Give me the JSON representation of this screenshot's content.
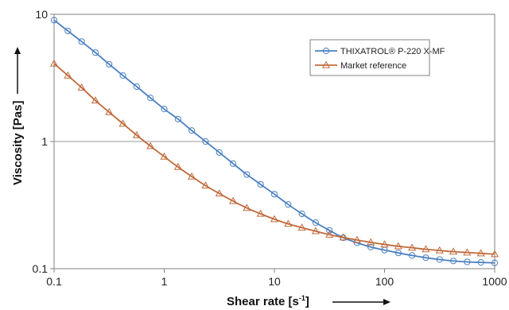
{
  "chart_data": {
    "type": "line",
    "xscale": "log",
    "yscale": "log",
    "xlim": [
      0.1,
      1000
    ],
    "ylim": [
      0.1,
      10
    ],
    "x_ticks": [
      {
        "value": 0.1,
        "label": "0.1"
      },
      {
        "value": 1,
        "label": "1"
      },
      {
        "value": 10,
        "label": "10"
      },
      {
        "value": 100,
        "label": "100"
      },
      {
        "value": 1000,
        "label": "1000"
      }
    ],
    "y_ticks": [
      {
        "value": 0.1,
        "label": "0.1"
      },
      {
        "value": 1,
        "label": "1"
      },
      {
        "value": 10,
        "label": "10"
      }
    ],
    "xlabel": "Shear rate [s",
    "xlabel_sup": "-1",
    "xlabel_suffix": "]",
    "ylabel": "Viscosity [Pas]",
    "grid": "horizontal line at 1",
    "legend_position": "top-right",
    "x": [
      0.1,
      0.1334,
      0.1778,
      0.2371,
      0.3162,
      0.4217,
      0.5623,
      0.7499,
      1,
      1.334,
      1.778,
      2.371,
      3.162,
      4.217,
      5.623,
      7.499,
      10,
      13.34,
      17.78,
      23.71,
      31.62,
      42.17,
      56.23,
      74.99,
      100,
      133.4,
      177.8,
      237.1,
      316.2,
      421.7,
      562.3,
      749.9,
      1000
    ],
    "series": [
      {
        "name": "THIXATROL® P-220 X-MF",
        "color": "#4a7fc1",
        "marker": "circle",
        "values": [
          9.0,
          7.4,
          6.1,
          5.0,
          4.05,
          3.3,
          2.7,
          2.2,
          1.8,
          1.5,
          1.22,
          1.0,
          0.82,
          0.67,
          0.55,
          0.46,
          0.385,
          0.32,
          0.27,
          0.23,
          0.2,
          0.175,
          0.16,
          0.148,
          0.14,
          0.133,
          0.127,
          0.122,
          0.118,
          0.115,
          0.113,
          0.112,
          0.111
        ]
      },
      {
        "name": "Market reference",
        "color": "#c0693a",
        "marker": "triangle",
        "values": [
          4.1,
          3.3,
          2.65,
          2.1,
          1.7,
          1.38,
          1.12,
          0.92,
          0.76,
          0.63,
          0.53,
          0.45,
          0.39,
          0.34,
          0.3,
          0.27,
          0.245,
          0.225,
          0.21,
          0.197,
          0.185,
          0.176,
          0.168,
          0.161,
          0.155,
          0.15,
          0.146,
          0.142,
          0.139,
          0.136,
          0.134,
          0.132,
          0.13
        ]
      }
    ]
  }
}
